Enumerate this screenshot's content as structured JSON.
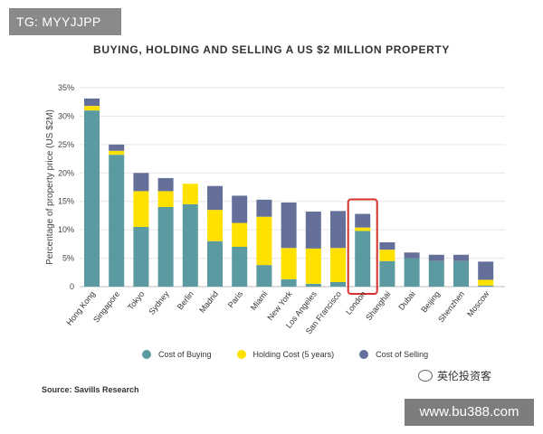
{
  "watermark_tag": "TG: MYYJJPP",
  "chart_data": {
    "type": "bar",
    "stacked": true,
    "title": "BUYING, HOLDING AND SELLING A US $2 MILLION PROPERTY",
    "xlabel": "",
    "ylabel": "Percentage of property price (US $2M)",
    "ylim": [
      0,
      35
    ],
    "yticks": [
      "0",
      "5%",
      "10%",
      "15%",
      "20%",
      "25%",
      "30%",
      "35%"
    ],
    "grid": true,
    "highlight": "London",
    "categories": [
      "Hong Kong",
      "Singapore",
      "Tokyo",
      "Sydney",
      "Berlin",
      "Madrid",
      "Paris",
      "Miami",
      "New York",
      "Los Angeles",
      "San Francisco",
      "London",
      "Shanghai",
      "Dubai",
      "Beijing",
      "Shenzhen",
      "Moscow"
    ],
    "series": [
      {
        "name": "Cost of Buying",
        "color": "#5b9aa0",
        "values": [
          31,
          23.2,
          10.5,
          14,
          14.5,
          8,
          7,
          3.8,
          1.3,
          0.5,
          0.8,
          9.8,
          4.5,
          5,
          4.5,
          4.5,
          0.2
        ]
      },
      {
        "name": "Holding Cost (5 years)",
        "color": "#ffe100",
        "values": [
          0.8,
          0.7,
          6.3,
          2.8,
          3.6,
          5.5,
          4.2,
          8.5,
          5.5,
          6.2,
          6,
          0.6,
          2,
          0,
          0,
          0,
          1
        ]
      },
      {
        "name": "Cost of Selling",
        "color": "#65709a",
        "values": [
          1.3,
          1.1,
          3.2,
          2.3,
          0,
          4.2,
          4.8,
          3,
          8,
          6.5,
          6.5,
          2.4,
          1.3,
          1,
          1.1,
          1.1,
          3.2
        ]
      }
    ]
  },
  "source": "Source: Savills Research",
  "wechat_label": "英伦投资客",
  "site_label": "www.bu388.com"
}
